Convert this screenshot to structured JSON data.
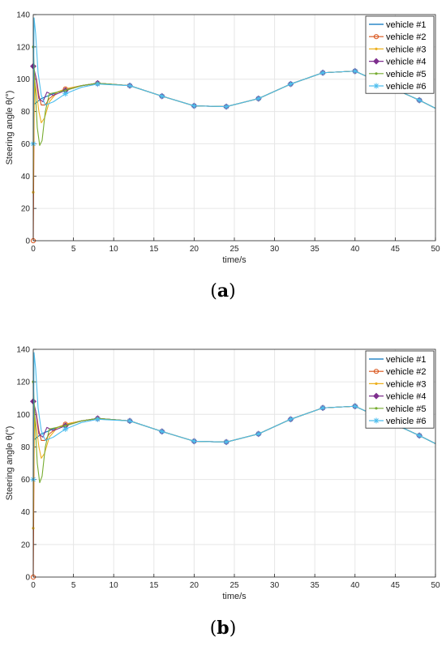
{
  "panels": [
    {
      "caption_open": "(",
      "caption_letter": "a",
      "caption_close": ")"
    },
    {
      "caption_open": "(",
      "caption_letter": "b",
      "caption_close": ")"
    }
  ],
  "legend_colors": [
    "#0072BD",
    "#D95319",
    "#EDB120",
    "#7E2F8E",
    "#77AC30",
    "#4DBEEE"
  ],
  "chart_data": [
    {
      "type": "line",
      "title": "",
      "xlabel": "time/s",
      "ylabel": "Steering angle  θ(°)",
      "xlim": [
        0,
        50
      ],
      "ylim": [
        0,
        140
      ],
      "xticks": [
        0,
        5,
        10,
        15,
        20,
        25,
        30,
        35,
        40,
        45,
        50
      ],
      "yticks": [
        0,
        20,
        40,
        60,
        80,
        100,
        120,
        140
      ],
      "grid": true,
      "legend_position": "top-right",
      "series": [
        {
          "name": "vehicle #1",
          "color": "#0072BD",
          "marker": "none",
          "x": [
            0,
            0.5,
            1,
            2,
            3,
            4,
            6,
            8,
            12,
            16,
            20,
            24,
            28,
            32,
            36,
            40,
            44,
            48,
            50
          ],
          "y": [
            84,
            86,
            88,
            90,
            92,
            93.5,
            96,
            97.5,
            96,
            89.5,
            83.5,
            83,
            88,
            97,
            104,
            105,
            96,
            87,
            82
          ]
        },
        {
          "name": "vehicle #2",
          "color": "#D95319",
          "marker": "circle",
          "x": [
            0,
            0.15,
            0.4,
            0.7,
            1,
            1.5,
            2,
            3,
            4,
            6,
            8,
            12,
            16,
            20,
            24,
            28,
            32,
            36,
            40,
            44,
            48,
            50
          ],
          "y": [
            0,
            105,
            100,
            90,
            84,
            84,
            88,
            92,
            94,
            96,
            97.5,
            96,
            89.5,
            83.5,
            83,
            88,
            97,
            104,
            105,
            96,
            87,
            82
          ]
        },
        {
          "name": "vehicle #3",
          "color": "#EDB120",
          "marker": "point",
          "x": [
            0,
            0.15,
            0.4,
            0.7,
            1,
            1.4,
            2,
            3,
            4,
            6,
            8,
            12,
            16,
            20,
            24,
            28,
            32,
            36,
            40,
            44,
            48,
            50
          ],
          "y": [
            30,
            100,
            92,
            80,
            73,
            76,
            86,
            92,
            94,
            96,
            97.5,
            96,
            89.5,
            83.5,
            83,
            88,
            97,
            104,
            105,
            96,
            87,
            82
          ]
        },
        {
          "name": "vehicle #4",
          "color": "#7E2F8E",
          "marker": "diamond",
          "x": [
            0,
            0.3,
            0.7,
            1.2,
            1.7,
            2.5,
            4,
            6,
            8,
            12,
            16,
            20,
            24,
            28,
            32,
            36,
            40,
            44,
            48,
            50
          ],
          "y": [
            108,
            102,
            88,
            86,
            92,
            90,
            93,
            96,
            97.5,
            96,
            89.5,
            83.5,
            83,
            88,
            97,
            104,
            105,
            96,
            87,
            82
          ]
        },
        {
          "name": "vehicle #5",
          "color": "#77AC30",
          "marker": "point",
          "x": [
            0,
            0.2,
            0.5,
            0.8,
            1.1,
            1.5,
            2,
            3,
            4,
            6,
            8,
            12,
            16,
            20,
            24,
            28,
            32,
            36,
            40,
            44,
            48,
            50
          ],
          "y": [
            120,
            98,
            70,
            59,
            62,
            80,
            91,
            92,
            93,
            96,
            97.5,
            96,
            89.5,
            83.5,
            83,
            88,
            97,
            104,
            105,
            96,
            87,
            82
          ]
        },
        {
          "name": "vehicle #6",
          "color": "#4DBEEE",
          "marker": "star",
          "x": [
            0,
            0.1,
            0.3,
            0.6,
            1,
            1.5,
            2.5,
            4,
            6,
            8,
            12,
            16,
            20,
            24,
            28,
            32,
            36,
            40,
            44,
            48,
            50
          ],
          "y": [
            60,
            138,
            128,
            104,
            90,
            84,
            86,
            91,
            95,
            97,
            96,
            89.5,
            83.5,
            83,
            88,
            97,
            104,
            105,
            96,
            87,
            82
          ]
        }
      ]
    },
    {
      "type": "line",
      "title": "",
      "xlabel": "time/s",
      "ylabel": "Steering angle  θ(°)",
      "xlim": [
        0,
        50
      ],
      "ylim": [
        0,
        140
      ],
      "xticks": [
        0,
        5,
        10,
        15,
        20,
        25,
        30,
        35,
        40,
        45,
        50
      ],
      "yticks": [
        0,
        20,
        40,
        60,
        80,
        100,
        120,
        140
      ],
      "grid": true,
      "legend_position": "top-right",
      "series": [
        {
          "name": "vehicle #1",
          "color": "#0072BD",
          "marker": "none",
          "x": [
            0,
            0.5,
            1,
            2,
            3,
            4,
            6,
            8,
            12,
            16,
            20,
            24,
            28,
            32,
            36,
            40,
            44,
            48,
            50
          ],
          "y": [
            84,
            86,
            88,
            90,
            92,
            93.5,
            96,
            97.5,
            96,
            89.5,
            83.5,
            83,
            88,
            97,
            104,
            105,
            96,
            87,
            82
          ]
        },
        {
          "name": "vehicle #2",
          "color": "#D95319",
          "marker": "circle",
          "x": [
            0,
            0.15,
            0.4,
            0.7,
            1,
            1.5,
            2,
            3,
            4,
            6,
            8,
            12,
            16,
            20,
            24,
            28,
            32,
            36,
            40,
            44,
            48,
            50
          ],
          "y": [
            0,
            105,
            100,
            90,
            84,
            84,
            88,
            92,
            94,
            96,
            97.5,
            96,
            89.5,
            83.5,
            83,
            88,
            97,
            104,
            105,
            96,
            87,
            82
          ]
        },
        {
          "name": "vehicle #3",
          "color": "#EDB120",
          "marker": "point",
          "x": [
            0,
            0.15,
            0.4,
            0.7,
            1,
            1.4,
            2,
            3,
            4,
            6,
            8,
            12,
            16,
            20,
            24,
            28,
            32,
            36,
            40,
            44,
            48,
            50
          ],
          "y": [
            30,
            100,
            92,
            80,
            73,
            76,
            86,
            92,
            94,
            96,
            97.5,
            96,
            89.5,
            83.5,
            83,
            88,
            97,
            104,
            105,
            96,
            87,
            82
          ]
        },
        {
          "name": "vehicle #4",
          "color": "#7E2F8E",
          "marker": "diamond",
          "x": [
            0,
            0.3,
            0.7,
            1.2,
            1.7,
            2.5,
            4,
            6,
            8,
            12,
            16,
            20,
            24,
            28,
            32,
            36,
            40,
            44,
            48,
            50
          ],
          "y": [
            108,
            102,
            88,
            86,
            92,
            90,
            93,
            96,
            97.5,
            96,
            89.5,
            83.5,
            83,
            88,
            97,
            104,
            105,
            96,
            87,
            82
          ]
        },
        {
          "name": "vehicle #5",
          "color": "#77AC30",
          "marker": "point",
          "x": [
            0,
            0.2,
            0.5,
            0.8,
            1.1,
            1.5,
            2,
            3,
            4,
            6,
            8,
            12,
            16,
            20,
            24,
            28,
            32,
            36,
            40,
            44,
            48,
            50
          ],
          "y": [
            120,
            98,
            70,
            58,
            62,
            80,
            91,
            92,
            93,
            96,
            97.5,
            96,
            89.5,
            83.5,
            83,
            88,
            97,
            104,
            105,
            96,
            87,
            82
          ]
        },
        {
          "name": "vehicle #6",
          "color": "#4DBEEE",
          "marker": "star",
          "x": [
            0,
            0.1,
            0.3,
            0.6,
            1,
            1.5,
            2.5,
            4,
            6,
            8,
            12,
            16,
            20,
            24,
            28,
            32,
            36,
            40,
            44,
            48,
            50
          ],
          "y": [
            60,
            138,
            128,
            104,
            90,
            84,
            86,
            91,
            95,
            97,
            96,
            89.5,
            83.5,
            83,
            88,
            97,
            104,
            105,
            96,
            87,
            82
          ]
        }
      ]
    }
  ]
}
